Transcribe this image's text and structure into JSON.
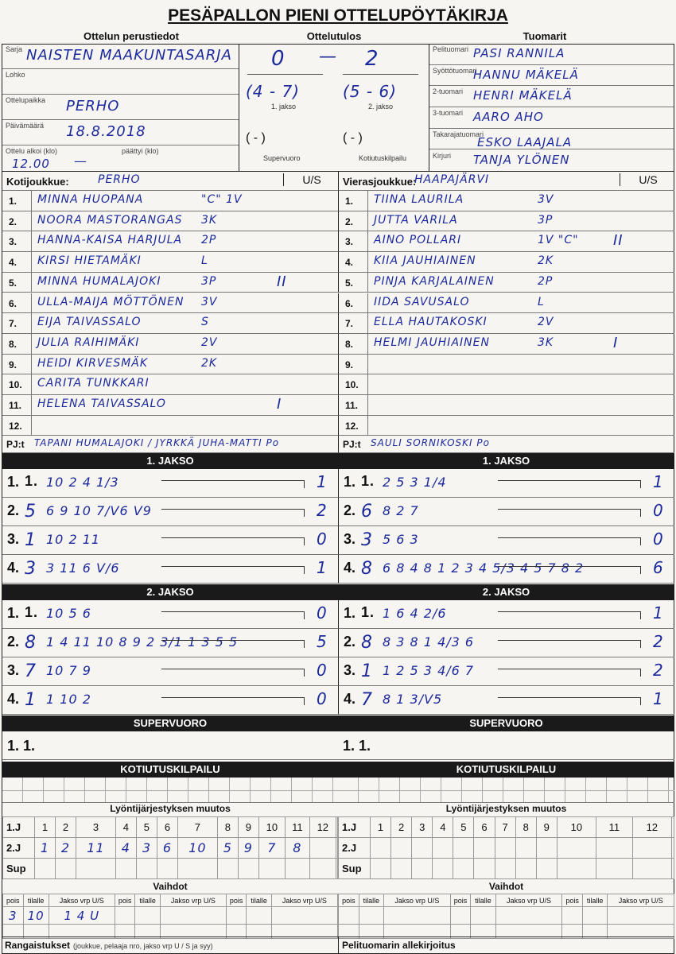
{
  "title": "PESÄPALLON PIENI OTTELUPÖYTÄKIRJA",
  "sections": {
    "basic": "Ottelun perustiedot",
    "result": "Ottelutulos",
    "referees": "Tuomarit"
  },
  "basic": [
    {
      "label": "Sarja",
      "value": "NAISTEN MAAKUNTASARJA"
    },
    {
      "label": "Lohko",
      "value": ""
    },
    {
      "label": "Ottelupaikka",
      "value": "PERHO"
    },
    {
      "label": "Päivämäärä",
      "value": "18.8.2018"
    },
    {
      "label": "Ottelu alkoi (klo)",
      "label2": "päättyi (klo)",
      "value": "12.00",
      "value2": "—"
    }
  ],
  "result": {
    "home": "0",
    "sep": "—",
    "away": "2",
    "p1": "(4 - 7)",
    "p1_label": "1. jakso",
    "p2": "(5 - 6)",
    "p2_label": "2. jakso",
    "sv": "( - )",
    "sv_label": "Supervuoro",
    "kk": "( - )",
    "kk_label": "Kotiutuskilpailu"
  },
  "referees": [
    {
      "label": "Pelituomari",
      "value": "PASI RANNILA"
    },
    {
      "label": "Syöttötuomari",
      "value": "HANNU MÄKELÄ"
    },
    {
      "label": "2-tuomari",
      "value": "HENRI MÄKELÄ"
    },
    {
      "label": "3-tuomari",
      "value": "AARO AHO"
    },
    {
      "label": "Takarajatuomari",
      "value": "ESKO LAAJALA"
    },
    {
      "label": "Kirjuri",
      "value": "TANJA YLÖNEN"
    }
  ],
  "home": {
    "label": "Kotijoukkue:",
    "name": "PERHO",
    "us": "U/S",
    "us_selected": "U",
    "players": [
      {
        "n": "1.",
        "name": "MINNA HUOPANA",
        "pos": "\"C\" 1V",
        "mark": ""
      },
      {
        "n": "2.",
        "name": "NOORA MASTORANGAS",
        "pos": "3K",
        "mark": ""
      },
      {
        "n": "3.",
        "name": "HANNA-KAISA HARJULA",
        "pos": "2P",
        "mark": ""
      },
      {
        "n": "4.",
        "name": "KIRSI HIETAMÄKI",
        "pos": "L",
        "mark": ""
      },
      {
        "n": "5.",
        "name": "MINNA HUMALAJOKI",
        "pos": "3P",
        "mark": "II"
      },
      {
        "n": "6.",
        "name": "ULLA-MAIJA MÖTTÖNEN",
        "pos": "3V",
        "mark": ""
      },
      {
        "n": "7.",
        "name": "EIJA TAIVASSALO",
        "pos": "S",
        "mark": ""
      },
      {
        "n": "8.",
        "name": "JULIA RAIHIMÄKI",
        "pos": "2V",
        "mark": ""
      },
      {
        "n": "9.",
        "name": "HEIDI KIRVESMÄK",
        "pos": "2K",
        "mark": ""
      },
      {
        "n": "10.",
        "name": "CARITA TUNKKARI",
        "pos": "",
        "mark": ""
      },
      {
        "n": "11.",
        "name": "HELENA TAIVASSALO",
        "pos": "",
        "mark": "I"
      },
      {
        "n": "12.",
        "name": "",
        "pos": "",
        "mark": ""
      }
    ],
    "pj_label": "PJ:t",
    "pj": "TAPANI HUMALAJOKI / JYRKKÄ JUHA-MATTI Po",
    "innings": [
      {
        "title": "1. JAKSO",
        "rows": [
          {
            "n": "1.",
            "first": "1.",
            "bat": "10 2 4 1/3",
            "runs": "1"
          },
          {
            "n": "2.",
            "first": "5",
            "bat": "6 9 10 7/V6 V9",
            "runs": "2"
          },
          {
            "n": "3.",
            "first": "1",
            "bat": "10 2 11",
            "runs": "0"
          },
          {
            "n": "4.",
            "first": "3",
            "bat": "3 11 6 V/6",
            "runs": "1"
          }
        ]
      },
      {
        "title": "2. JAKSO",
        "rows": [
          {
            "n": "1.",
            "first": "1.",
            "bat": "10 5 6",
            "runs": "0"
          },
          {
            "n": "2.",
            "first": "8",
            "bat": "1 4 11 10 8 9 2 3/1 1 3 5 5",
            "runs": "5"
          },
          {
            "n": "3.",
            "first": "7",
            "bat": "10 7 9",
            "runs": "0"
          },
          {
            "n": "4.",
            "first": "1",
            "bat": "1 10 2",
            "runs": "0"
          }
        ]
      }
    ],
    "order_change": {
      "row1": "1.J",
      "row2": "2.J",
      "row3": "Sup",
      "cols": [
        "1",
        "2",
        "3",
        "4",
        "5",
        "6",
        "7",
        "8",
        "9",
        "10",
        "11",
        "12"
      ],
      "j2": [
        "1",
        "2",
        "11",
        "4",
        "3",
        "6",
        "10",
        "5",
        "9",
        "7",
        "8",
        ""
      ]
    },
    "subs": {
      "headers": [
        "pois",
        "tilalle",
        "Jakso vrp U/S",
        "pois",
        "tilalle",
        "Jakso vrp U/S",
        "pois",
        "tilalle",
        "Jakso vrp U/S"
      ],
      "row1": [
        "3",
        "10",
        "1 4 U",
        "",
        "",
        "",
        "",
        "",
        ""
      ]
    }
  },
  "away": {
    "label": "Vierasjoukkue:",
    "name": "HAAPAJÄRVI",
    "us": "U/S",
    "us_selected": "S",
    "players": [
      {
        "n": "1.",
        "name": "TIINA LAURILA",
        "pos": "3V",
        "mark": ""
      },
      {
        "n": "2.",
        "name": "JUTTA VARILA",
        "pos": "3P",
        "mark": ""
      },
      {
        "n": "3.",
        "name": "AINO POLLARI",
        "pos": "1V \"C\"",
        "mark": "II"
      },
      {
        "n": "4.",
        "name": "KIIA JAUHIAINEN",
        "pos": "2K",
        "mark": ""
      },
      {
        "n": "5.",
        "name": "PINJA KARJALAINEN",
        "pos": "2P",
        "mark": ""
      },
      {
        "n": "6.",
        "name": "IIDA SAVUSALO",
        "pos": "L",
        "mark": ""
      },
      {
        "n": "7.",
        "name": "ELLA HAUTAKOSKI",
        "pos": "2V",
        "mark": ""
      },
      {
        "n": "8.",
        "name": "HELMI JAUHIAINEN",
        "pos": "3K",
        "mark": "I"
      },
      {
        "n": "9.",
        "name": "",
        "pos": "",
        "mark": ""
      },
      {
        "n": "10.",
        "name": "",
        "pos": "",
        "mark": ""
      },
      {
        "n": "11.",
        "name": "",
        "pos": "",
        "mark": ""
      },
      {
        "n": "12.",
        "name": "",
        "pos": "",
        "mark": ""
      }
    ],
    "pj_label": "PJ:t",
    "pj": "SAULI SORNIKOSKI Po",
    "innings": [
      {
        "title": "1. JAKSO",
        "rows": [
          {
            "n": "1.",
            "first": "1.",
            "bat": "2 5 3 1/4",
            "runs": "1"
          },
          {
            "n": "2.",
            "first": "6",
            "bat": "8 2 7",
            "runs": "0"
          },
          {
            "n": "3.",
            "first": "3",
            "bat": "5 6 3",
            "runs": "0"
          },
          {
            "n": "4.",
            "first": "8",
            "bat": "6 8 4 8 1 2 3 4 5/3 4 5 7 8 2",
            "runs": "6"
          }
        ]
      },
      {
        "title": "2. JAKSO",
        "rows": [
          {
            "n": "1.",
            "first": "1.",
            "bat": "1 6 4 2/6",
            "runs": "1"
          },
          {
            "n": "2.",
            "first": "8",
            "bat": "8 3 8 1 4/3 6",
            "runs": "2"
          },
          {
            "n": "3.",
            "first": "1",
            "bat": "1 2 5 3 4/6 7",
            "runs": "2"
          },
          {
            "n": "4.",
            "first": "7",
            "bat": "8 1 3/V5",
            "runs": "1"
          }
        ]
      }
    ],
    "order_change": {
      "row1": "1.J",
      "row2": "2.J",
      "row3": "Sup",
      "cols": [
        "1",
        "2",
        "3",
        "4",
        "5",
        "6",
        "7",
        "8",
        "9",
        "10",
        "11",
        "12"
      ],
      "j2": [
        "",
        "",
        "",
        "",
        "",
        "",
        "",
        "",
        "",
        "",
        "",
        ""
      ]
    },
    "subs": {
      "headers": [
        "pois",
        "tilalle",
        "Jakso vrp U/S",
        "pois",
        "tilalle",
        "Jakso vrp U/S",
        "pois",
        "tilalle",
        "Jakso vrp U/S"
      ],
      "row1": [
        "",
        "",
        "",
        "",
        "",
        "",
        "",
        "",
        ""
      ]
    }
  },
  "supervuoro": {
    "title": "SUPERVUORO",
    "row": "1. 1."
  },
  "kotiutus": {
    "title": "KOTIUTUSKILPAILU"
  },
  "order_title": "Lyöntijärjestyksen muutos",
  "subs_title": "Vaihdot",
  "penalties": {
    "label": "Rangaistukset",
    "hint": "(joukkue, pelaaja nro, jakso vrp U / S ja syy)"
  },
  "signature": {
    "label": "Pelituomarin allekirjoitus"
  },
  "colors": {
    "ink": "#1c2a9c",
    "bar": "#1a1a1a"
  }
}
